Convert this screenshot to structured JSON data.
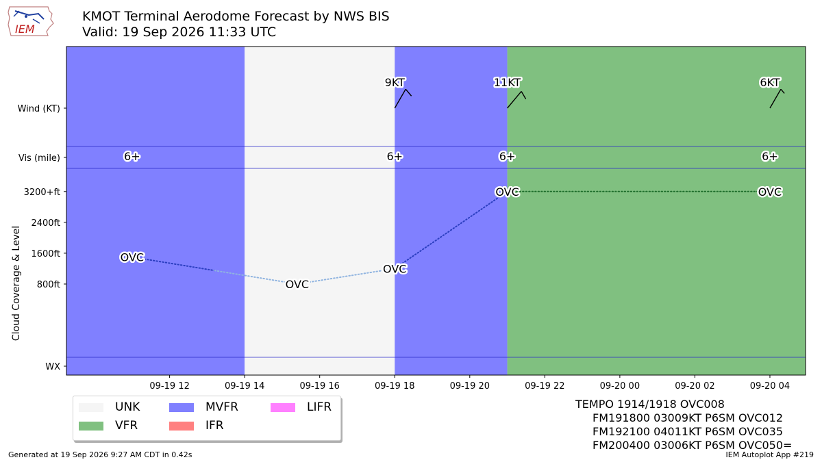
{
  "header": {
    "title": "KMOT Terminal Aerodome Forecast by NWS BIS",
    "valid": "Valid: 19 Sep 2026 11:33 UTC",
    "logo_text": "IEM"
  },
  "chart_data": {
    "type": "timeline",
    "y_tick_labels": [
      "Wind (KT)",
      "Vis (mile)",
      "3200+ft",
      "2400ft",
      "1600ft",
      "800ft",
      "WX"
    ],
    "ylabel": "Cloud Coverage & Level",
    "cloud_axis": {
      "ylim_ft": [
        -1100,
        3800
      ],
      "ticks_ft": [
        3200,
        2400,
        1600,
        800
      ]
    },
    "x_range_hours": [
      -1.75,
      17.95
    ],
    "x_ticks": [
      {
        "h": 1,
        "label": "09-19 12"
      },
      {
        "h": 3,
        "label": "09-19 14"
      },
      {
        "h": 5,
        "label": "09-19 16"
      },
      {
        "h": 7,
        "label": "09-19 18"
      },
      {
        "h": 9,
        "label": "09-19 20"
      },
      {
        "h": 11,
        "label": "09-19 22"
      },
      {
        "h": 13,
        "label": "09-20 00"
      },
      {
        "h": 15,
        "label": "09-20 02"
      },
      {
        "h": 17,
        "label": "09-20 04"
      }
    ],
    "categories": [
      {
        "name": "UNK",
        "color": "#f5f5f5"
      },
      {
        "name": "VFR",
        "color": "#80c080"
      },
      {
        "name": "MVFR",
        "color": "#8080ff"
      },
      {
        "name": "IFR",
        "color": "#ff8080"
      },
      {
        "name": "LIFR",
        "color": "#ff80ff"
      }
    ],
    "bands": [
      {
        "start": -1.75,
        "end": 3.0,
        "category": "MVFR"
      },
      {
        "start": 3.0,
        "end": 7.0,
        "category": "UNK"
      },
      {
        "start": 7.0,
        "end": 10.0,
        "category": "MVFR"
      },
      {
        "start": 10.0,
        "end": 17.95,
        "category": "VFR"
      }
    ],
    "wind": [
      {
        "h": 7.0,
        "label": "9KT",
        "dir": 30,
        "speed": 9
      },
      {
        "h": 10.0,
        "label": "11KT",
        "dir": 40,
        "speed": 11
      },
      {
        "h": 17.0,
        "label": "6KT",
        "dir": 30,
        "speed": 6
      }
    ],
    "visibility": [
      {
        "h": 0.0,
        "label": "6+"
      },
      {
        "h": 7.0,
        "label": "6+"
      },
      {
        "h": 10.0,
        "label": "6+"
      },
      {
        "h": 17.0,
        "label": "6+"
      }
    ],
    "clouds": [
      {
        "h": 0.0,
        "level_ft": 1500,
        "label": "OVC"
      },
      {
        "h": 4.4,
        "level_ft": 800,
        "label": "OVC"
      },
      {
        "h": 7.0,
        "level_ft": 1200,
        "label": "OVC"
      },
      {
        "h": 10.0,
        "level_ft": 3200,
        "label": "OVC"
      },
      {
        "h": 17.0,
        "level_ft": 3200,
        "label": "OVC"
      }
    ],
    "cloud_segments": [
      {
        "from": 0,
        "to": 1,
        "color": "#2b3ec0"
      },
      {
        "from": 0,
        "to": 1,
        "color": "#90b4e0",
        "split": 0.5
      },
      {
        "from": 1,
        "to": 2,
        "color": "#90b4e0"
      },
      {
        "from": 2,
        "to": 3,
        "color": "#2b3ec0"
      },
      {
        "from": 3,
        "to": 4,
        "color": "#1f6e2c"
      }
    ]
  },
  "legend": {
    "items": [
      {
        "label": "UNK",
        "color": "#f5f5f5"
      },
      {
        "label": "VFR",
        "color": "#80c080"
      },
      {
        "label": "MVFR",
        "color": "#8080ff"
      },
      {
        "label": "IFR",
        "color": "#ff8080"
      },
      {
        "label": "LIFR",
        "color": "#ff80ff"
      }
    ]
  },
  "taf_text": [
    "TEMPO 1914/1918 OVC008",
    "FM191800 03009KT P6SM OVC012",
    "FM192100 04011KT P6SM OVC035",
    "FM200400 03006KT P6SM OVC050="
  ],
  "footer": {
    "generated": "Generated at 19 Sep 2026 9:27 AM CDT in 0.42s",
    "app": "IEM Autoplot App #219"
  }
}
